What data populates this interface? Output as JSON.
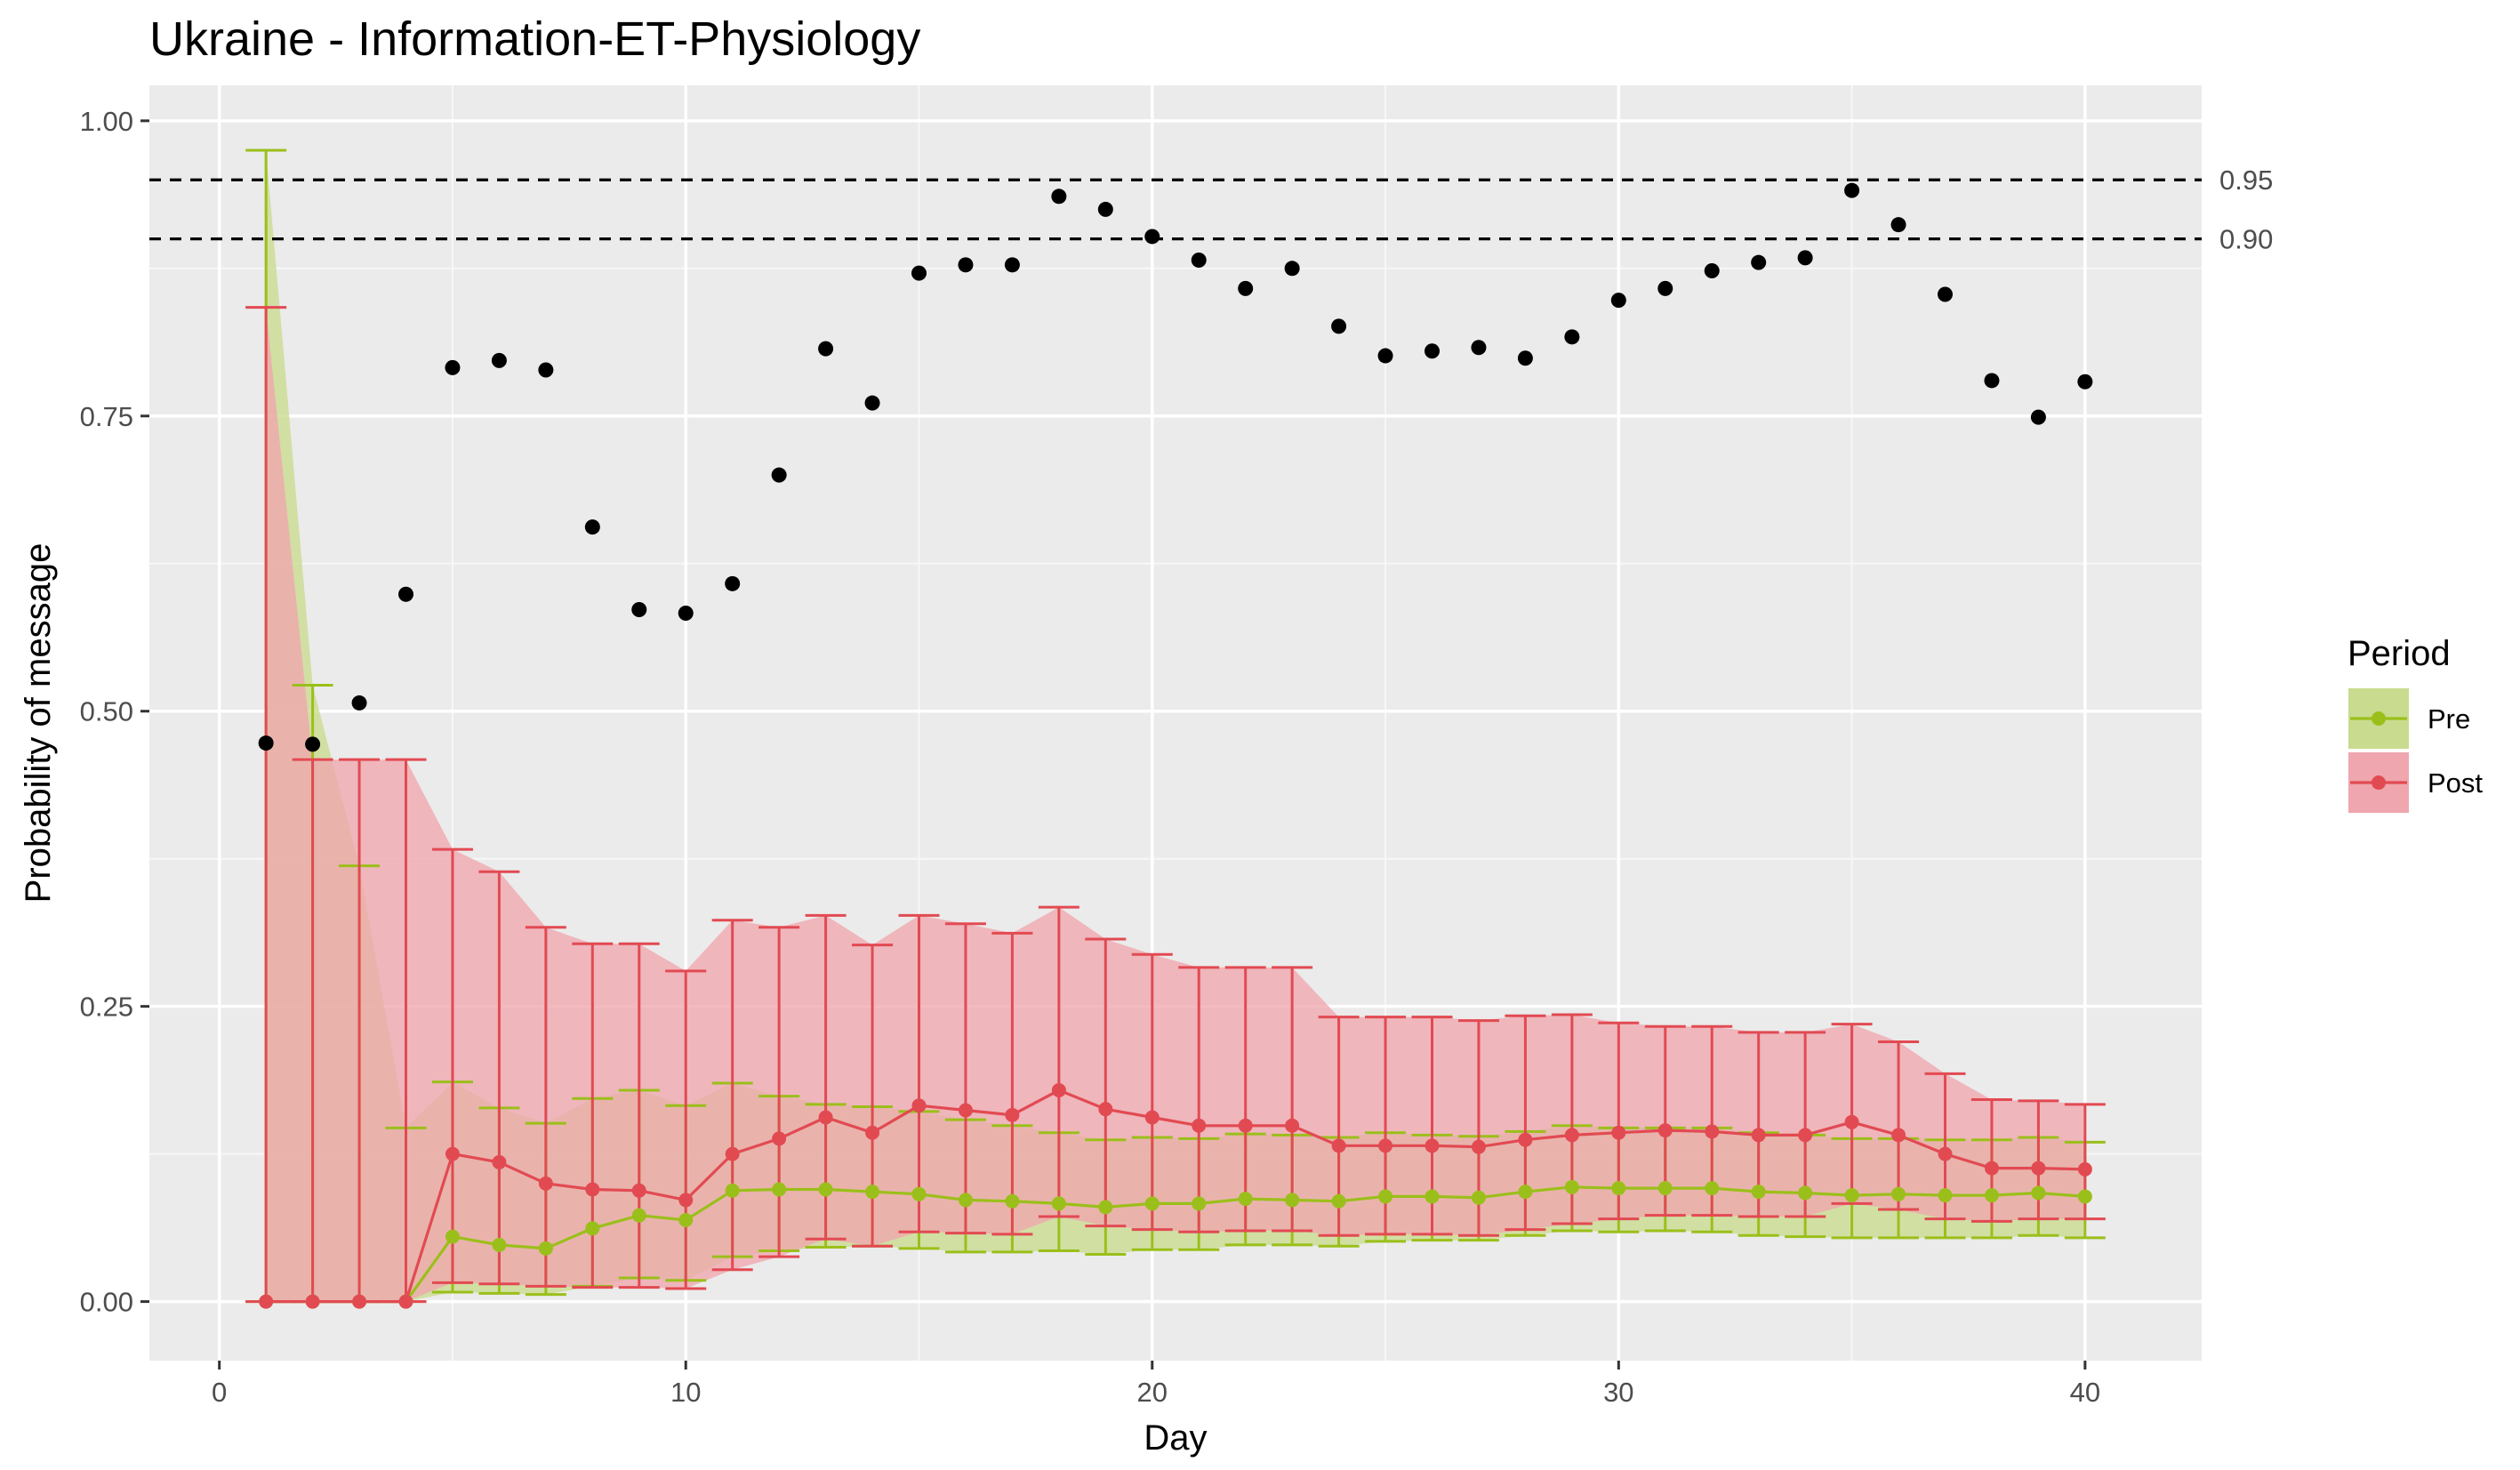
{
  "chart_data": {
    "type": "line",
    "title": "Ukraine - Information-ET-Physiology",
    "xlabel": "Day",
    "ylabel": "Probability of message",
    "xlim": [
      -1.5,
      42.5
    ],
    "ylim": [
      -0.05,
      1.03
    ],
    "x_ticks": [
      0,
      10,
      20,
      30,
      40
    ],
    "x_tick_labels": [
      "0",
      "10",
      "20",
      "30",
      "40"
    ],
    "y_ticks": [
      0,
      0.25,
      0.5,
      0.75,
      1.0
    ],
    "y_tick_labels": [
      "0.00",
      "0.25",
      "0.50",
      "0.75",
      "1.00"
    ],
    "grid": true,
    "legend": {
      "title": "Period",
      "position": "right",
      "entries": [
        {
          "label": "Pre",
          "color": "#9BBF1A",
          "fill": "#C9DB8E"
        },
        {
          "label": "Post",
          "color": "#E24A52",
          "fill": "#EFA6AE"
        }
      ]
    },
    "reference_lines": [
      {
        "y": 0.95,
        "label": "0.95",
        "style": "dashed"
      },
      {
        "y": 0.9,
        "label": "0.90",
        "style": "dashed"
      }
    ],
    "x": [
      1,
      2,
      3,
      4,
      5,
      6,
      7,
      8,
      9,
      10,
      11,
      12,
      13,
      14,
      15,
      16,
      17,
      18,
      19,
      20,
      21,
      22,
      23,
      24,
      25,
      26,
      27,
      28,
      29,
      30,
      31,
      32,
      33,
      34,
      35,
      36,
      37,
      38,
      39,
      40
    ],
    "black_points": {
      "values": [
        0.473,
        0.472,
        0.507,
        0.599,
        0.791,
        0.797,
        0.789,
        0.656,
        0.586,
        0.583,
        0.608,
        0.7,
        0.807,
        0.761,
        0.871,
        0.878,
        0.878,
        0.936,
        0.925,
        0.902,
        0.882,
        0.858,
        0.875,
        0.826,
        0.801,
        0.805,
        0.808,
        0.799,
        0.817,
        0.848,
        0.858,
        0.873,
        0.88,
        0.884,
        0.941,
        0.912,
        0.853,
        0.78,
        0.749,
        0.779
      ]
    },
    "series": [
      {
        "name": "Pre",
        "color": "#9BBF1A",
        "fill": "#C9DB8E",
        "values": [
          0,
          0,
          0,
          0,
          0.055,
          0.048,
          0.045,
          0.062,
          0.073,
          0.069,
          0.094,
          0.095,
          0.095,
          0.093,
          0.091,
          0.086,
          0.085,
          0.083,
          0.08,
          0.083,
          0.083,
          0.087,
          0.086,
          0.085,
          0.089,
          0.089,
          0.088,
          0.093,
          0.097,
          0.096,
          0.096,
          0.096,
          0.093,
          0.092,
          0.09,
          0.091,
          0.09,
          0.09,
          0.092,
          0.089
        ],
        "lower": [
          0,
          0,
          0,
          0,
          0.008,
          0.007,
          0.006,
          0.013,
          0.02,
          0.018,
          0.038,
          0.043,
          0.046,
          0.047,
          0.045,
          0.042,
          0.042,
          0.043,
          0.04,
          0.044,
          0.044,
          0.048,
          0.048,
          0.047,
          0.051,
          0.052,
          0.052,
          0.056,
          0.06,
          0.059,
          0.06,
          0.059,
          0.056,
          0.055,
          0.054,
          0.054,
          0.054,
          0.054,
          0.056,
          0.054
        ],
        "upper": [
          0.975,
          0.522,
          0.369,
          0.147,
          0.186,
          0.164,
          0.151,
          0.172,
          0.179,
          0.166,
          0.185,
          0.174,
          0.167,
          0.165,
          0.161,
          0.154,
          0.149,
          0.143,
          0.137,
          0.139,
          0.138,
          0.142,
          0.141,
          0.139,
          0.143,
          0.141,
          0.14,
          0.144,
          0.149,
          0.147,
          0.147,
          0.147,
          0.143,
          0.141,
          0.138,
          0.138,
          0.137,
          0.137,
          0.139,
          0.135
        ]
      },
      {
        "name": "Post",
        "color": "#E24A52",
        "fill": "#EFA6AE",
        "values": [
          0,
          0,
          0,
          0,
          0.125,
          0.118,
          0.1,
          0.095,
          0.094,
          0.086,
          0.125,
          0.138,
          0.156,
          0.143,
          0.166,
          0.162,
          0.158,
          0.179,
          0.163,
          0.156,
          0.149,
          0.149,
          0.149,
          0.132,
          0.132,
          0.132,
          0.131,
          0.137,
          0.141,
          0.143,
          0.145,
          0.144,
          0.141,
          0.141,
          0.152,
          0.141,
          0.125,
          0.113,
          0.113,
          0.112
        ],
        "lower": [
          0,
          0,
          0,
          0,
          0.016,
          0.015,
          0.013,
          0.012,
          0.012,
          0.011,
          0.027,
          0.038,
          0.053,
          0.047,
          0.059,
          0.058,
          0.057,
          0.072,
          0.064,
          0.061,
          0.059,
          0.06,
          0.06,
          0.056,
          0.057,
          0.057,
          0.056,
          0.061,
          0.066,
          0.07,
          0.073,
          0.073,
          0.072,
          0.072,
          0.083,
          0.078,
          0.07,
          0.068,
          0.07,
          0.07
        ],
        "upper": [
          0.842,
          0.459,
          0.459,
          0.459,
          0.383,
          0.364,
          0.317,
          0.303,
          0.303,
          0.28,
          0.323,
          0.317,
          0.327,
          0.302,
          0.327,
          0.32,
          0.312,
          0.334,
          0.307,
          0.294,
          0.283,
          0.283,
          0.283,
          0.241,
          0.241,
          0.241,
          0.238,
          0.242,
          0.243,
          0.236,
          0.233,
          0.233,
          0.228,
          0.228,
          0.235,
          0.22,
          0.193,
          0.171,
          0.17,
          0.167
        ]
      }
    ]
  }
}
